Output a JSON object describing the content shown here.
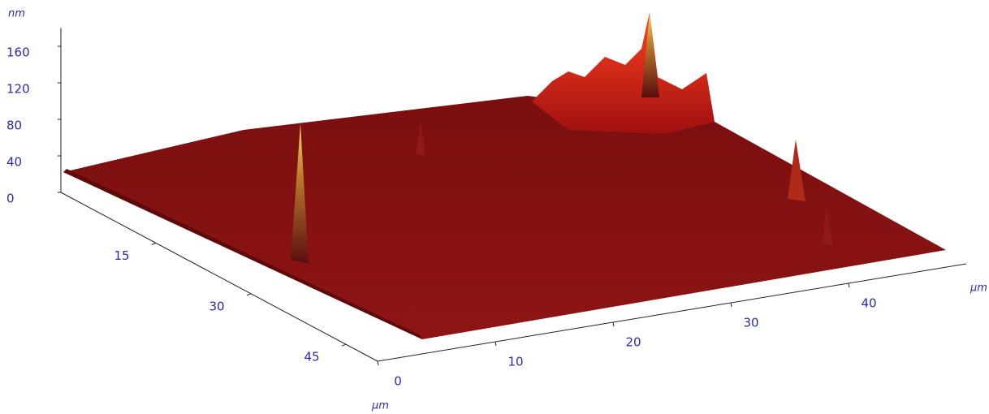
{
  "chart_data": {
    "type": "surface",
    "x_label": "µm",
    "xlim": [
      0,
      50
    ],
    "xticks": [
      0,
      10,
      20,
      30,
      40
    ],
    "y_label": "µm",
    "ylim": [
      0,
      50
    ],
    "yticks": [
      15,
      30,
      45
    ],
    "z_label": "nm",
    "zlim": [
      0,
      180
    ],
    "zticks": [
      0,
      40,
      80,
      120,
      160
    ],
    "color": "#8a1010"
  }
}
